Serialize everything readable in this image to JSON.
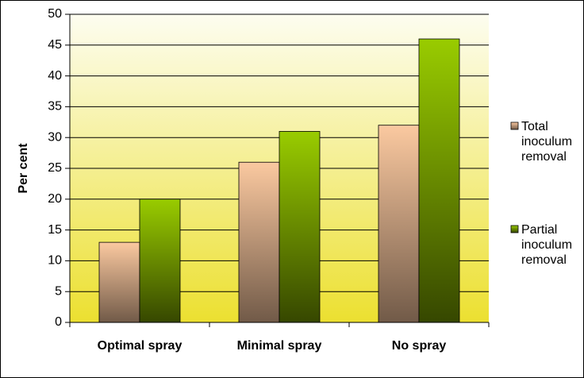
{
  "chart_data": {
    "type": "bar",
    "categories": [
      "Optimal spray",
      "Minimal spray",
      "No spray"
    ],
    "series": [
      {
        "name": "Total inoculum removal",
        "color": "#fbc9a0",
        "values": [
          13,
          26,
          32
        ]
      },
      {
        "name": "Partial inoculum removal",
        "color": "#99cc00",
        "values": [
          20,
          31,
          46
        ]
      }
    ],
    "ylabel": "Per cent",
    "ylim": [
      0,
      50
    ],
    "yticks": [
      0,
      5,
      10,
      15,
      20,
      25,
      30,
      35,
      40,
      45,
      50
    ],
    "grid": true,
    "legend": "right"
  }
}
